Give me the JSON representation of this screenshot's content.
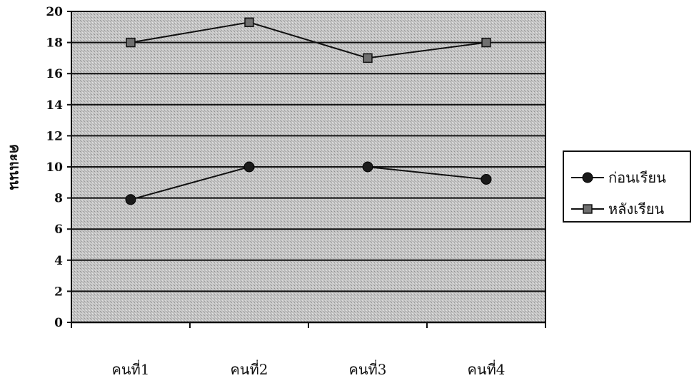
{
  "chart_data": {
    "type": "line",
    "categories": [
      "คนที่1",
      "คนที่2",
      "คนที่3",
      "คนที่4"
    ],
    "series": [
      {
        "name": "ก่อนเรียน",
        "marker": "circle",
        "values": [
          7.9,
          10,
          10,
          9.2
        ]
      },
      {
        "name": "หลังเรียน",
        "marker": "square",
        "values": [
          18,
          19.3,
          17,
          18
        ]
      }
    ],
    "title": "",
    "xlabel": "",
    "ylabel": "คะแนน",
    "ylim": [
      0,
      20
    ],
    "yticks": [
      0,
      2,
      4,
      6,
      8,
      10,
      12,
      14,
      16,
      18,
      20
    ],
    "grid": true,
    "legend_position": "right",
    "colors": {
      "line": "#111111",
      "marker": "#1a1a1a",
      "plot_bg": "#c4c4c4",
      "grid": "#111111"
    }
  }
}
